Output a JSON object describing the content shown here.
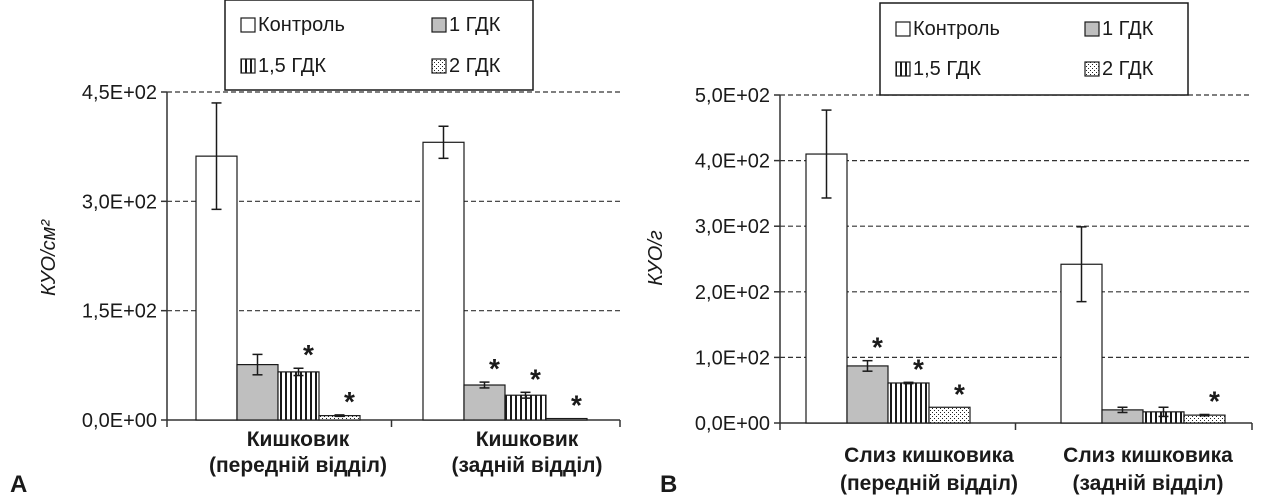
{
  "chart_data": [
    {
      "panel": "A",
      "type": "bar",
      "ylabel": "КУО/см²",
      "ylim": [
        0,
        450
      ],
      "yticks": [
        0,
        150,
        300,
        450
      ],
      "ytick_labels": [
        "0,0E+00",
        "1,5E+02",
        "3,0E+02",
        "4,5E+02"
      ],
      "grid": "horizontal dashed",
      "legend": "top",
      "categories": [
        [
          "Кишковик",
          "(передній відділ)"
        ],
        [
          "Кишковик",
          "(задній відділ)"
        ]
      ],
      "series": [
        {
          "name": "Контроль",
          "values": [
            362,
            381
          ],
          "errors": [
            73,
            22
          ],
          "significant": [
            false,
            false
          ]
        },
        {
          "name": "1 ГДК",
          "values": [
            76,
            48
          ],
          "errors": [
            14,
            4
          ],
          "significant": [
            false,
            true
          ]
        },
        {
          "name": "1,5 ГДК",
          "values": [
            66,
            34
          ],
          "errors": [
            5,
            4
          ],
          "significant": [
            true,
            true
          ]
        },
        {
          "name": "2 ГДК",
          "values": [
            6,
            2
          ],
          "errors": [
            1,
            0
          ],
          "significant": [
            true,
            true
          ]
        }
      ],
      "significance_marker": "*"
    },
    {
      "panel": "B",
      "type": "bar",
      "ylabel": "КУО/г",
      "ylim": [
        0,
        500
      ],
      "yticks": [
        0,
        100,
        200,
        300,
        400,
        500
      ],
      "ytick_labels": [
        "0,0E+00",
        "1,0E+02",
        "2,0E+02",
        "3,0E+02",
        "4,0E+02",
        "5,0E+02"
      ],
      "grid": "horizontal dashed",
      "legend": "top",
      "categories": [
        [
          "Слиз кишковика",
          "(передній відділ)"
        ],
        [
          "Слиз кишковика",
          "(задній відділ)"
        ]
      ],
      "series": [
        {
          "name": "Контроль",
          "values": [
            410,
            242
          ],
          "errors": [
            67,
            57
          ],
          "significant": [
            false,
            false
          ]
        },
        {
          "name": "1 ГДК",
          "values": [
            87,
            20
          ],
          "errors": [
            8,
            4
          ],
          "significant": [
            true,
            false
          ]
        },
        {
          "name": "1,5 ГДК",
          "values": [
            61,
            17
          ],
          "errors": [
            1,
            7
          ],
          "significant": [
            true,
            false
          ]
        },
        {
          "name": "2 ГДК",
          "values": [
            24,
            12
          ],
          "errors": [
            0,
            1
          ],
          "significant": [
            true,
            true
          ]
        }
      ],
      "significance_marker": "*"
    }
  ]
}
